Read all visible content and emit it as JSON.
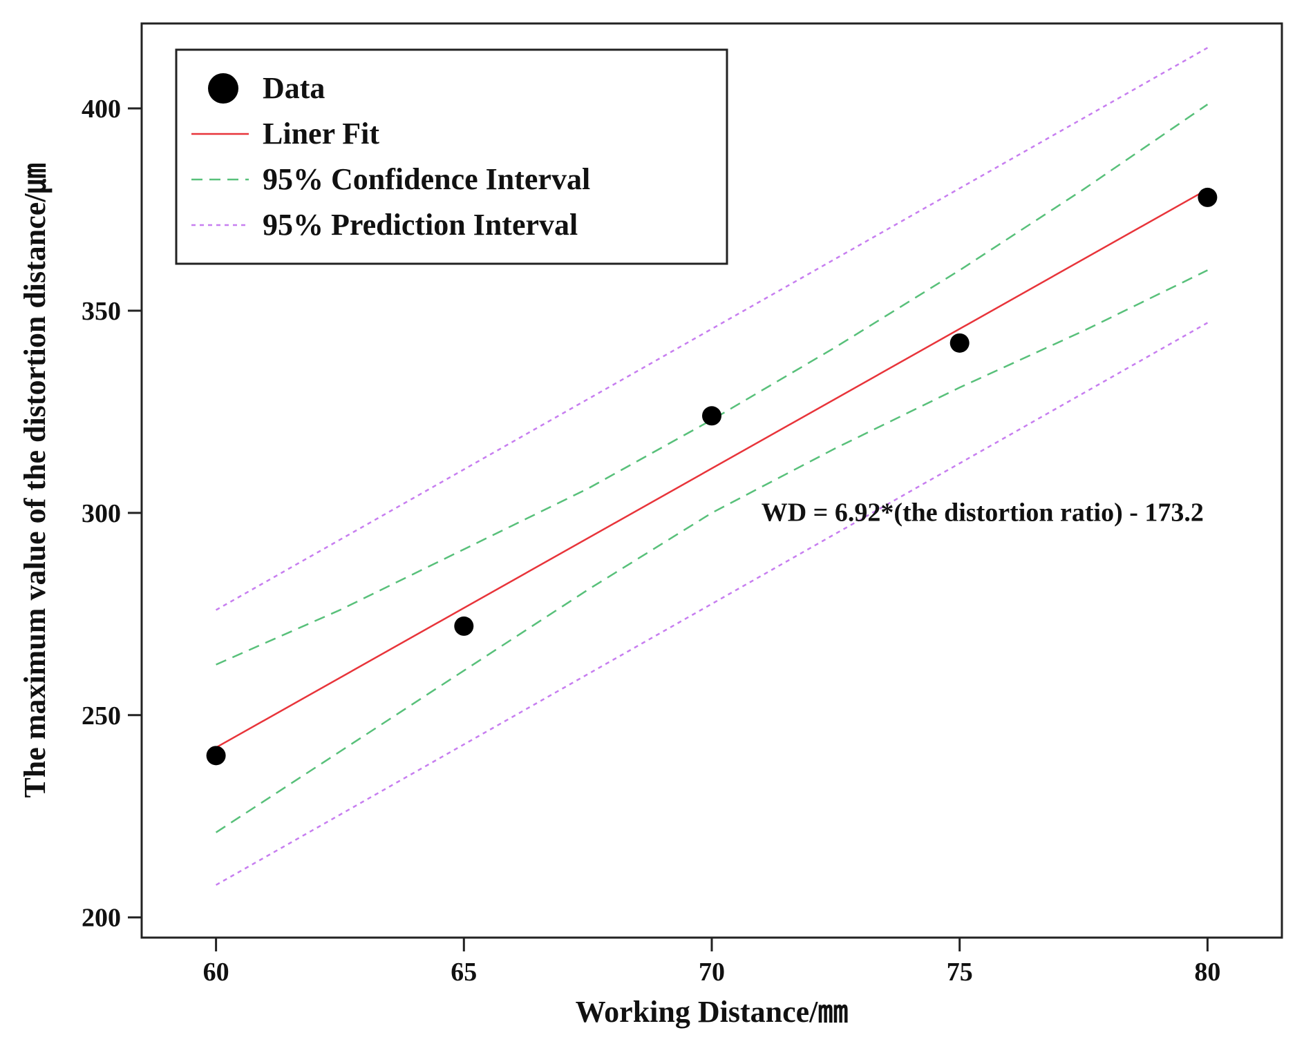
{
  "chart_data": {
    "type": "scatter",
    "xlabel": "Working Distance/㎜",
    "ylabel": "The maximum value of the distortion distance/㎛",
    "xlim": [
      58.5,
      81.5
    ],
    "ylim": [
      195,
      421
    ],
    "x_ticks": [
      60,
      65,
      70,
      75,
      80
    ],
    "y_ticks": [
      200,
      250,
      300,
      350,
      400
    ],
    "grid": false,
    "legend_position": "top-left",
    "legend": [
      {
        "key": "data",
        "label": "Data"
      },
      {
        "key": "fit",
        "label": "Liner Fit"
      },
      {
        "key": "ci",
        "label": "95% Confidence Interval"
      },
      {
        "key": "pi",
        "label": "95% Prediction Interval"
      }
    ],
    "series": [
      {
        "name": "Data",
        "kind": "points",
        "x": [
          60,
          65,
          70,
          75,
          80
        ],
        "y": [
          240,
          272,
          324,
          342,
          378
        ]
      },
      {
        "name": "Liner Fit",
        "kind": "line",
        "x": [
          60,
          80
        ],
        "y": [
          242,
          380
        ]
      },
      {
        "name": "95% Confidence Interval upper",
        "kind": "dashed",
        "x": [
          60,
          62.5,
          65,
          67.5,
          70,
          72.5,
          75,
          77.5,
          80
        ],
        "y": [
          262.5,
          276,
          291,
          306,
          323,
          341,
          360,
          380,
          401
        ]
      },
      {
        "name": "95% Confidence Interval lower",
        "kind": "dashed",
        "x": [
          60,
          62.5,
          65,
          67.5,
          70,
          72.5,
          75,
          77.5,
          80
        ],
        "y": [
          221,
          241,
          261,
          281,
          300,
          316,
          331,
          345,
          360
        ]
      },
      {
        "name": "95% Prediction Interval upper",
        "kind": "dotted",
        "x": [
          60,
          80
        ],
        "y": [
          276,
          415
        ]
      },
      {
        "name": "95% Prediction Interval lower",
        "kind": "dotted",
        "x": [
          60,
          80
        ],
        "y": [
          208,
          347
        ]
      }
    ],
    "annotation": "WD = 6.92*(the distortion ratio) - 173.2",
    "annotation_anchor": {
      "x": 71,
      "y": 298
    }
  },
  "colors": {
    "data": "#000000",
    "fit": "#e8343a",
    "ci": "#58c07a",
    "pi": "#c77ef0",
    "axis": "#222222"
  }
}
